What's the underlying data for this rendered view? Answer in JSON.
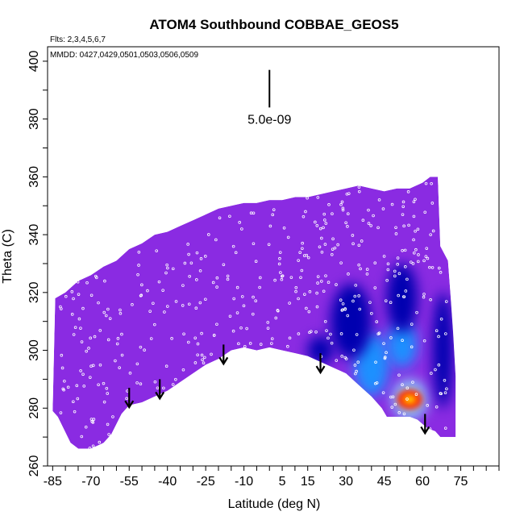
{
  "chart_data": {
    "type": "heatmap",
    "title": "ATOM4 Southbound COBBAE_GEOS5",
    "subtitle_flights": "Flts: 2,3,4,5,6,7",
    "subtitle_dates": "MMDD: 0427,0429,0501,0503,0506,0509",
    "xlabel": "Latitude (deg N)",
    "ylabel": "Theta (C)",
    "xlim": [
      -87,
      90
    ],
    "ylim": [
      260,
      405
    ],
    "x_ticks": [
      -85,
      -70,
      -55,
      -40,
      -25,
      -10,
      5,
      15,
      30,
      45,
      60,
      75
    ],
    "x_tick_labels": [
      "-85",
      "-70",
      "-55",
      "-40",
      "-25",
      "-10",
      "5",
      "15",
      "30",
      "45",
      "60",
      "75"
    ],
    "y_ticks": [
      260,
      280,
      300,
      320,
      340,
      360,
      380,
      400
    ],
    "y_tick_labels": [
      "260",
      "280",
      "300",
      "320",
      "340",
      "360",
      "380",
      "400"
    ],
    "scale_bar_label": "5.0e-09",
    "scale_bar": {
      "x": 0,
      "y_from": 384,
      "y_to": 397
    },
    "background_color": "#8a2be2",
    "colors": {
      "low": "#8a2be2",
      "mid_low": "#0000b0",
      "mid": "#1e90ff",
      "mid_high": "#87cefa",
      "high": "#ff2000",
      "peak": "#ffd700"
    },
    "upper_boundary": [
      [
        -85,
        279
      ],
      [
        -84,
        318
      ],
      [
        -80,
        320
      ],
      [
        -75,
        324
      ],
      [
        -70,
        326
      ],
      [
        -65,
        329
      ],
      [
        -60,
        331
      ],
      [
        -55,
        335
      ],
      [
        -50,
        337
      ],
      [
        -45,
        340
      ],
      [
        -40,
        341
      ],
      [
        -35,
        343
      ],
      [
        -30,
        345
      ],
      [
        -25,
        347
      ],
      [
        -20,
        349
      ],
      [
        -15,
        350
      ],
      [
        -10,
        351
      ],
      [
        -5,
        351
      ],
      [
        0,
        352
      ],
      [
        5,
        352
      ],
      [
        10,
        353
      ],
      [
        15,
        353
      ],
      [
        20,
        354
      ],
      [
        25,
        355
      ],
      [
        30,
        356
      ],
      [
        35,
        357
      ],
      [
        40,
        356
      ],
      [
        45,
        355
      ],
      [
        50,
        356
      ],
      [
        55,
        356
      ],
      [
        60,
        358
      ],
      [
        63,
        360
      ],
      [
        66,
        360
      ],
      [
        67,
        336
      ],
      [
        70,
        331
      ],
      [
        71,
        319
      ],
      [
        72,
        306
      ],
      [
        73,
        291
      ],
      [
        73,
        270
      ]
    ],
    "lower_boundary": [
      [
        73,
        270
      ],
      [
        67,
        270
      ],
      [
        65,
        272
      ],
      [
        62,
        273
      ],
      [
        58,
        276
      ],
      [
        55,
        277
      ],
      [
        50,
        277
      ],
      [
        46,
        277
      ],
      [
        44,
        280
      ],
      [
        40,
        284
      ],
      [
        35,
        288
      ],
      [
        30,
        292
      ],
      [
        25,
        294
      ],
      [
        20,
        296
      ],
      [
        15,
        298
      ],
      [
        10,
        299
      ],
      [
        5,
        300
      ],
      [
        0,
        301
      ],
      [
        -5,
        300
      ],
      [
        -10,
        301
      ],
      [
        -15,
        300
      ],
      [
        -20,
        297
      ],
      [
        -25,
        295
      ],
      [
        -30,
        292
      ],
      [
        -35,
        289
      ],
      [
        -40,
        286
      ],
      [
        -45,
        284
      ],
      [
        -50,
        282
      ],
      [
        -55,
        281
      ],
      [
        -58,
        278
      ],
      [
        -62,
        271
      ],
      [
        -65,
        268
      ],
      [
        -70,
        266
      ],
      [
        -75,
        266
      ],
      [
        -78,
        268
      ],
      [
        -83,
        277
      ],
      [
        -85,
        279
      ]
    ],
    "enhancements": [
      {
        "lat": 55,
        "theta": 283,
        "width": 14,
        "height": 14,
        "level": "mid_high"
      },
      {
        "lat": 55,
        "theta": 283,
        "width": 10,
        "height": 7,
        "level": "high"
      },
      {
        "lat": 55,
        "theta": 283,
        "width": 5,
        "height": 3,
        "level": "peak"
      },
      {
        "lat": 40,
        "theta": 295,
        "width": 14,
        "height": 22,
        "level": "mid"
      },
      {
        "lat": 52,
        "theta": 302,
        "width": 12,
        "height": 16,
        "level": "mid"
      },
      {
        "lat": 32,
        "theta": 310,
        "width": 16,
        "height": 26,
        "level": "mid_low"
      },
      {
        "lat": 52,
        "theta": 318,
        "width": 12,
        "height": 24,
        "level": "mid_low"
      },
      {
        "lat": 68,
        "theta": 300,
        "width": 8,
        "height": 40,
        "level": "mid_low"
      },
      {
        "lat": 20,
        "theta": 300,
        "width": 10,
        "height": 10,
        "level": "mid_low"
      }
    ],
    "tropopause_arrows": [
      {
        "lat": -55,
        "theta": 287
      },
      {
        "lat": -43,
        "theta": 290
      },
      {
        "lat": -18,
        "theta": 302
      },
      {
        "lat": 20,
        "theta": 299
      },
      {
        "lat": 61,
        "theta": 278
      }
    ],
    "sample_points": {
      "count": 420,
      "seed": 7
    }
  }
}
